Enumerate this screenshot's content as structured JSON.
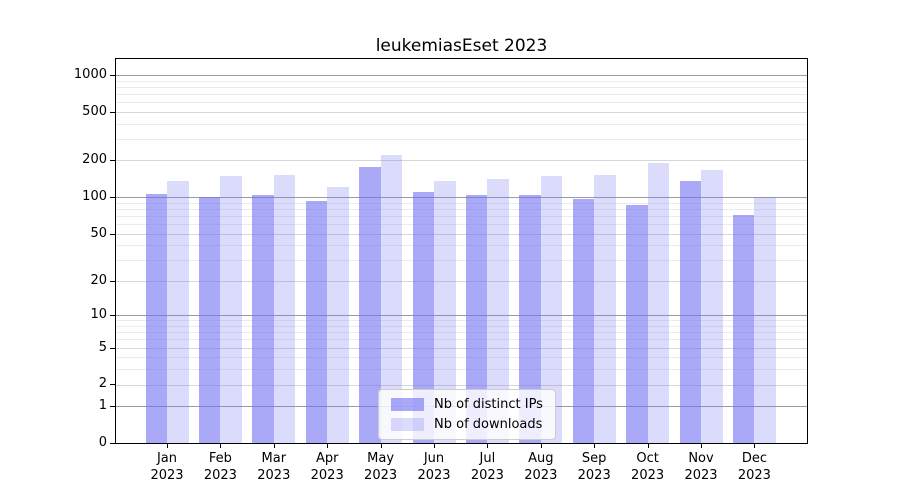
{
  "chart_data": {
    "type": "bar",
    "title": "leukemiasEset 2023",
    "categories": [
      "Jan",
      "Feb",
      "Mar",
      "Apr",
      "May",
      "Jun",
      "Jul",
      "Aug",
      "Sep",
      "Oct",
      "Nov",
      "Dec"
    ],
    "year": "2023",
    "series": [
      {
        "name": "Nb of distinct IPs",
        "color": "rgba(112,112,244,0.6)",
        "values": [
          107,
          100,
          105,
          93,
          177,
          110,
          104,
          104,
          97,
          86,
          137,
          71
        ]
      },
      {
        "name": "Nb of downloads",
        "color": "rgba(112,112,244,0.25)",
        "values": [
          135,
          148,
          151,
          122,
          223,
          135,
          140,
          149,
          152,
          189,
          167,
          100
        ]
      }
    ],
    "yticks": [
      0,
      1,
      2,
      5,
      10,
      20,
      50,
      100,
      200,
      500,
      1000
    ],
    "minor_yticks": [
      3,
      4,
      6,
      7,
      8,
      9,
      30,
      40,
      60,
      70,
      80,
      90,
      300,
      400,
      600,
      700,
      800,
      900
    ],
    "scale": "log10(value+1)",
    "ylim": [
      0,
      1348
    ],
    "grid": true,
    "legend_position": "lower center"
  },
  "colors": {
    "bar_ips": "rgba(112,112,244,0.6)",
    "bar_downloads": "rgba(112,112,244,0.25)",
    "grid_major": "#d7d7d7",
    "grid_minor": "#ebebeb",
    "grid_decade": "#9c9c9c",
    "spine": "#000000",
    "background": "#ffffff"
  }
}
